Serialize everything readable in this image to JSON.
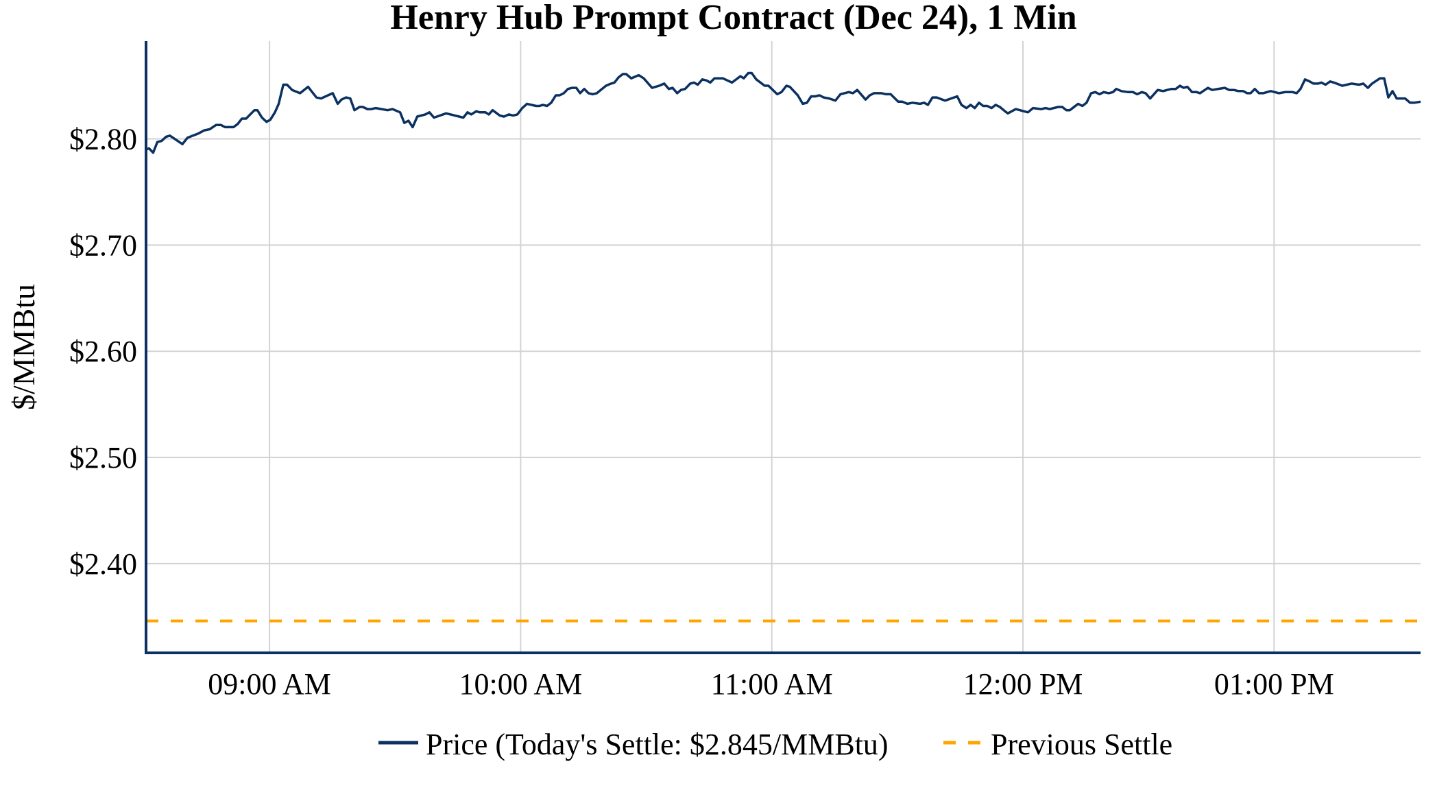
{
  "chart_data": {
    "type": "line",
    "title": "Henry Hub Prompt Contract (Dec 24), 1 Min",
    "xlabel": "",
    "ylabel": "$/MMBtu",
    "x_unit": "minutes after 08:30",
    "xlim": [
      0.5,
      305
    ],
    "ylim": [
      2.316,
      2.892
    ],
    "grid": true,
    "legend_position": "bottom-center",
    "x_ticks": [
      {
        "value": 30,
        "label": "09:00 AM"
      },
      {
        "value": 90,
        "label": "10:00 AM"
      },
      {
        "value": 150,
        "label": "11:00 AM"
      },
      {
        "value": 210,
        "label": "12:00 PM"
      },
      {
        "value": 270,
        "label": "01:00 PM"
      }
    ],
    "y_ticks": [
      {
        "value": 2.4,
        "label": "$2.40"
      },
      {
        "value": 2.5,
        "label": "$2.50"
      },
      {
        "value": 2.6,
        "label": "$2.60"
      },
      {
        "value": 2.7,
        "label": "$2.70"
      },
      {
        "value": 2.8,
        "label": "$2.80"
      }
    ],
    "series": [
      {
        "name": "Price (Today's Settle: $2.845/MMBtu)",
        "color": "#0b3161",
        "style": "solid",
        "points": [
          [
            0.5,
            2.79
          ],
          [
            1.2,
            2.791
          ],
          [
            2.2,
            2.787
          ],
          [
            3.2,
            2.797
          ],
          [
            4.2,
            2.798
          ],
          [
            5.3,
            2.802
          ],
          [
            6.2,
            2.803
          ],
          [
            9.2,
            2.795
          ],
          [
            10.4,
            2.801
          ],
          [
            11.7,
            2.803
          ],
          [
            13.0,
            2.805
          ],
          [
            14.4,
            2.808
          ],
          [
            15.7,
            2.809
          ],
          [
            17.2,
            2.813
          ],
          [
            18.4,
            2.813
          ],
          [
            19.4,
            2.811
          ],
          [
            21.4,
            2.811
          ],
          [
            22.4,
            2.814
          ],
          [
            23.4,
            2.819
          ],
          [
            24.4,
            2.819
          ],
          [
            26.4,
            2.827
          ],
          [
            27.1,
            2.827
          ],
          [
            28.2,
            2.82
          ],
          [
            29.3,
            2.816
          ],
          [
            30.2,
            2.818
          ],
          [
            31.3,
            2.825
          ],
          [
            32.2,
            2.833
          ],
          [
            33.3,
            2.851
          ],
          [
            34.2,
            2.851
          ],
          [
            35.4,
            2.846
          ],
          [
            37.3,
            2.843
          ],
          [
            39.2,
            2.849
          ],
          [
            41.2,
            2.839
          ],
          [
            42.3,
            2.838
          ],
          [
            45.1,
            2.843
          ],
          [
            46.3,
            2.833
          ],
          [
            47.2,
            2.837
          ],
          [
            48.3,
            2.839
          ],
          [
            49.3,
            2.838
          ],
          [
            50.3,
            2.827
          ],
          [
            51.5,
            2.83
          ],
          [
            52.3,
            2.83
          ],
          [
            53.4,
            2.828
          ],
          [
            54.3,
            2.828
          ],
          [
            55.4,
            2.829
          ],
          [
            58.2,
            2.827
          ],
          [
            59.4,
            2.828
          ],
          [
            61.2,
            2.825
          ],
          [
            62.2,
            2.815
          ],
          [
            63.2,
            2.817
          ],
          [
            64.2,
            2.811
          ],
          [
            65.3,
            2.821
          ],
          [
            67.2,
            2.823
          ],
          [
            68.2,
            2.825
          ],
          [
            69.3,
            2.82
          ],
          [
            72.2,
            2.824
          ],
          [
            76.3,
            2.82
          ],
          [
            77.3,
            2.825
          ],
          [
            78.2,
            2.823
          ],
          [
            79.4,
            2.826
          ],
          [
            80.2,
            2.825
          ],
          [
            81.6,
            2.825
          ],
          [
            82.4,
            2.823
          ],
          [
            83.3,
            2.827
          ],
          [
            85.0,
            2.822
          ],
          [
            86.0,
            2.821
          ],
          [
            87.2,
            2.823
          ],
          [
            88.2,
            2.822
          ],
          [
            89.2,
            2.823
          ],
          [
            90.4,
            2.829
          ],
          [
            91.5,
            2.833
          ],
          [
            93.7,
            2.831
          ],
          [
            94.5,
            2.831
          ],
          [
            95.3,
            2.832
          ],
          [
            96.3,
            2.831
          ],
          [
            97.3,
            2.834
          ],
          [
            98.4,
            2.841
          ],
          [
            99.3,
            2.841
          ],
          [
            100.3,
            2.843
          ],
          [
            101.3,
            2.847
          ],
          [
            102.3,
            2.848
          ],
          [
            103.3,
            2.848
          ],
          [
            104.2,
            2.843
          ],
          [
            105.2,
            2.847
          ],
          [
            106.2,
            2.843
          ],
          [
            107.2,
            2.842
          ],
          [
            108.2,
            2.843
          ],
          [
            110.4,
            2.85
          ],
          [
            111.6,
            2.852
          ],
          [
            112.4,
            2.853
          ],
          [
            113.4,
            2.858
          ],
          [
            114.4,
            2.861
          ],
          [
            115.2,
            2.861
          ],
          [
            116.4,
            2.857
          ],
          [
            118.2,
            2.86
          ],
          [
            119.4,
            2.857
          ],
          [
            121.4,
            2.848
          ],
          [
            123.1,
            2.85
          ],
          [
            124.3,
            2.852
          ],
          [
            125.4,
            2.847
          ],
          [
            126.3,
            2.848
          ],
          [
            127.4,
            2.843
          ],
          [
            128.3,
            2.846
          ],
          [
            129.3,
            2.847
          ],
          [
            130.5,
            2.852
          ],
          [
            131.4,
            2.853
          ],
          [
            132.3,
            2.851
          ],
          [
            133.4,
            2.856
          ],
          [
            134.4,
            2.855
          ],
          [
            135.3,
            2.853
          ],
          [
            136.3,
            2.857
          ],
          [
            137.3,
            2.857
          ],
          [
            138.3,
            2.857
          ],
          [
            139.4,
            2.855
          ],
          [
            140.5,
            2.853
          ],
          [
            142.5,
            2.859
          ],
          [
            143.3,
            2.857
          ],
          [
            144.4,
            2.862
          ],
          [
            145.2,
            2.862
          ],
          [
            146.3,
            2.856
          ],
          [
            148.3,
            2.85
          ],
          [
            149.2,
            2.85
          ],
          [
            151.3,
            2.842
          ],
          [
            152.3,
            2.844
          ],
          [
            153.5,
            2.85
          ],
          [
            154.3,
            2.849
          ],
          [
            156.2,
            2.841
          ],
          [
            157.4,
            2.833
          ],
          [
            158.4,
            2.834
          ],
          [
            159.4,
            2.84
          ],
          [
            160.4,
            2.84
          ],
          [
            161.4,
            2.841
          ],
          [
            162.4,
            2.839
          ],
          [
            163.7,
            2.838
          ],
          [
            165.2,
            2.836
          ],
          [
            166.4,
            2.842
          ],
          [
            168.4,
            2.844
          ],
          [
            169.4,
            2.843
          ],
          [
            170.4,
            2.846
          ],
          [
            172.4,
            2.837
          ],
          [
            173.4,
            2.841
          ],
          [
            174.4,
            2.843
          ],
          [
            176.2,
            2.843
          ],
          [
            177.3,
            2.842
          ],
          [
            178.4,
            2.842
          ],
          [
            180.2,
            2.835
          ],
          [
            181.2,
            2.835
          ],
          [
            182.4,
            2.833
          ],
          [
            183.6,
            2.834
          ],
          [
            185.4,
            2.833
          ],
          [
            186.4,
            2.834
          ],
          [
            187.3,
            2.832
          ],
          [
            188.4,
            2.839
          ],
          [
            189.4,
            2.839
          ],
          [
            191.4,
            2.836
          ],
          [
            194.3,
            2.84
          ],
          [
            195.3,
            2.832
          ],
          [
            196.5,
            2.829
          ],
          [
            197.5,
            2.832
          ],
          [
            198.5,
            2.829
          ],
          [
            199.5,
            2.834
          ],
          [
            200.5,
            2.831
          ],
          [
            201.5,
            2.831
          ],
          [
            202.5,
            2.829
          ],
          [
            203.5,
            2.832
          ],
          [
            204.5,
            2.83
          ],
          [
            205.7,
            2.826
          ],
          [
            206.4,
            2.824
          ],
          [
            208.3,
            2.828
          ],
          [
            211.2,
            2.825
          ],
          [
            212.4,
            2.829
          ],
          [
            214.4,
            2.828
          ],
          [
            215.4,
            2.829
          ],
          [
            216.4,
            2.828
          ],
          [
            218.4,
            2.83
          ],
          [
            219.4,
            2.83
          ],
          [
            220.4,
            2.827
          ],
          [
            221.2,
            2.827
          ],
          [
            223.2,
            2.833
          ],
          [
            224.2,
            2.831
          ],
          [
            225.2,
            2.834
          ],
          [
            226.3,
            2.843
          ],
          [
            227.3,
            2.844
          ],
          [
            228.3,
            2.842
          ],
          [
            229.3,
            2.844
          ],
          [
            230.5,
            2.843
          ],
          [
            231.5,
            2.844
          ],
          [
            232.3,
            2.847
          ],
          [
            233.5,
            2.845
          ],
          [
            235.1,
            2.844
          ],
          [
            236.3,
            2.844
          ],
          [
            237.3,
            2.842
          ],
          [
            238.4,
            2.844
          ],
          [
            239.3,
            2.843
          ],
          [
            240.4,
            2.838
          ],
          [
            242.2,
            2.846
          ],
          [
            243.5,
            2.845
          ],
          [
            244.5,
            2.846
          ],
          [
            245.5,
            2.847
          ],
          [
            246.5,
            2.847
          ],
          [
            247.5,
            2.85
          ],
          [
            248.4,
            2.848
          ],
          [
            249.3,
            2.849
          ],
          [
            250.4,
            2.844
          ],
          [
            251.5,
            2.844
          ],
          [
            252.3,
            2.843
          ],
          [
            254.2,
            2.848
          ],
          [
            255.2,
            2.846
          ],
          [
            258.2,
            2.848
          ],
          [
            259.3,
            2.846
          ],
          [
            260.4,
            2.846
          ],
          [
            261.5,
            2.845
          ],
          [
            262.6,
            2.845
          ],
          [
            263.6,
            2.843
          ],
          [
            264.4,
            2.843
          ],
          [
            265.4,
            2.847
          ],
          [
            266.4,
            2.843
          ],
          [
            267.4,
            2.843
          ],
          [
            269.2,
            2.845
          ],
          [
            271.2,
            2.843
          ],
          [
            272.6,
            2.844
          ],
          [
            274.4,
            2.844
          ],
          [
            275.4,
            2.843
          ],
          [
            276.3,
            2.847
          ],
          [
            277.4,
            2.856
          ],
          [
            278.5,
            2.854
          ],
          [
            279.4,
            2.852
          ],
          [
            280.5,
            2.852
          ],
          [
            281.3,
            2.853
          ],
          [
            282.3,
            2.851
          ],
          [
            283.4,
            2.854
          ],
          [
            284.3,
            2.853
          ],
          [
            286.3,
            2.85
          ],
          [
            288.5,
            2.852
          ],
          [
            290.3,
            2.851
          ],
          [
            291.3,
            2.852
          ],
          [
            292.4,
            2.848
          ],
          [
            293.4,
            2.852
          ],
          [
            295.3,
            2.857
          ],
          [
            296.3,
            2.857
          ],
          [
            297.3,
            2.839
          ],
          [
            298.3,
            2.845
          ],
          [
            299.3,
            2.838
          ],
          [
            301.3,
            2.838
          ],
          [
            302.5,
            2.834
          ],
          [
            303.5,
            2.834
          ],
          [
            305.0,
            2.835
          ]
        ]
      },
      {
        "name": "Previous Settle",
        "color": "#ffa500",
        "style": "dashed",
        "value": 2.346
      }
    ]
  }
}
